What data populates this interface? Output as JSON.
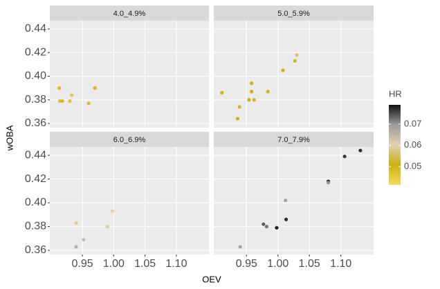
{
  "chart_data": {
    "type": "scatter",
    "x_label": "OEV",
    "y_label": "wOBA",
    "xlim": [
      0.898,
      1.152
    ],
    "ylim": [
      0.3565,
      0.447
    ],
    "xticks": [
      0.95,
      {
        "value": 1.0,
        "label": "1.00"
      },
      1.05,
      {
        "value": 1.1,
        "label": "1.10"
      }
    ],
    "yticks": [
      0.36,
      0.38,
      {
        "value": 0.4,
        "label": "0.40"
      },
      0.42,
      0.44
    ],
    "grid": true,
    "colorbar": {
      "title": "HR",
      "lim": [
        0.0415,
        0.079
      ],
      "ticks": [
        0.05,
        0.06,
        0.07
      ],
      "colors": [
        "#f2dc60",
        "#cfae10",
        "#e0d2b4",
        "#9a9a9a",
        "#111111"
      ]
    },
    "facets": [
      {
        "title": "4.0_4.9%",
        "x": [
          0.913,
          0.914,
          0.918,
          0.93,
          0.933,
          0.96,
          0.97
        ],
        "y": [
          0.39,
          0.379,
          0.379,
          0.379,
          0.384,
          0.377,
          0.39
        ],
        "hr": [
          0.048,
          0.047,
          0.049,
          0.046,
          0.045,
          0.048,
          0.049
        ]
      },
      {
        "title": "5.0_5.9%",
        "x": [
          0.911,
          0.939,
          0.936,
          0.954,
          0.958,
          0.958,
          0.962,
          0.984,
          1.008,
          1.027,
          1.03
        ],
        "y": [
          0.386,
          0.374,
          0.364,
          0.38,
          0.387,
          0.394,
          0.38,
          0.387,
          0.405,
          0.413,
          0.418
        ],
        "hr": [
          0.05,
          0.049,
          0.05,
          0.051,
          0.051,
          0.05,
          0.052,
          0.05,
          0.051,
          0.052,
          0.056
        ]
      },
      {
        "title": "6.0_6.9%",
        "x": [
          0.94,
          0.94,
          0.952,
          0.99,
          0.998
        ],
        "y": [
          0.383,
          0.363,
          0.369,
          0.38,
          0.393
        ],
        "hr": [
          0.058,
          0.066,
          0.064,
          0.059,
          0.06
        ]
      },
      {
        "title": "7.0_7.9%",
        "x": [
          0.94,
          0.977,
          0.982,
          0.998,
          1.012,
          1.013,
          1.08,
          1.08,
          1.106,
          1.131
        ],
        "y": [
          0.363,
          0.382,
          0.38,
          0.379,
          0.402,
          0.386,
          0.418,
          0.417,
          0.439,
          0.444
        ],
        "hr": [
          0.068,
          0.074,
          0.072,
          0.078,
          0.068,
          0.077,
          0.078,
          0.07,
          0.076,
          0.077
        ]
      }
    ]
  }
}
